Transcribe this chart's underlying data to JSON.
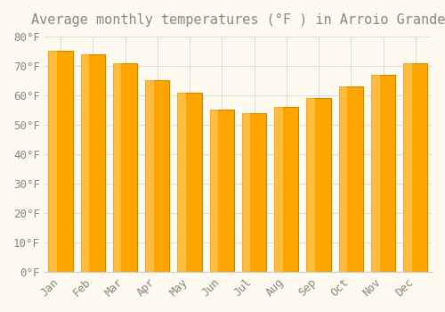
{
  "title": "Average monthly temperatures (°F ) in Arroio Grande",
  "months": [
    "Jan",
    "Feb",
    "Mar",
    "Apr",
    "May",
    "Jun",
    "Jul",
    "Aug",
    "Sep",
    "Oct",
    "Nov",
    "Dec"
  ],
  "values": [
    75,
    74,
    71,
    65,
    61,
    55,
    54,
    56,
    59,
    63,
    67,
    71
  ],
  "bar_color": "#FFA500",
  "bar_edge_color": "#CC8800",
  "bar_highlight_color": "#FFD070",
  "background_color": "#FFFAF0",
  "grid_color": "#DDDDDD",
  "text_color": "#888888",
  "ylim": [
    0,
    80
  ],
  "yticks": [
    0,
    10,
    20,
    30,
    40,
    50,
    60,
    70,
    80
  ],
  "ylabel_format": "°F",
  "title_fontsize": 11,
  "tick_fontsize": 9,
  "figsize": [
    5.0,
    3.5
  ],
  "dpi": 100
}
